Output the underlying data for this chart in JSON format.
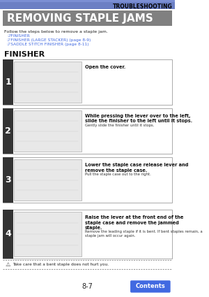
{
  "page_bg": "#ffffff",
  "header_bar_color": "#6b7fc4",
  "header_text": "TROUBLESHOOTING",
  "header_text_color": "#000000",
  "title_bg": "#808080",
  "title_text": "REMOVING STAPLE JAMS",
  "title_text_color": "#ffffff",
  "intro_text": "Follow the steps below to remove a staple jam.",
  "links": [
    "☞FINISHER",
    "☞FINISHER (LARGE STACKER) (page 8-9)",
    "☞SADDLE STITCH FINISHER (page 8-11)"
  ],
  "link_color": "#4169e1",
  "section_title": "FINISHER",
  "steps": [
    {
      "num": "1",
      "main_text": "Open the cover.",
      "sub_text": ""
    },
    {
      "num": "2",
      "main_text": "While pressing the lever over to the left,\nslide the finisher to the left until it stops.",
      "sub_text": "Gently slide the finisher until it stops."
    },
    {
      "num": "3",
      "main_text": "Lower the staple case release lever and\nremove the staple case.",
      "sub_text": "Pull the staple case out to the right."
    },
    {
      "num": "4",
      "main_text": "Raise the lever at the front end of the\nstaple case and remove the jammed\nstaple.",
      "sub_text": "Remove the leading staple if it is bent. If bent staples remain, a\nstaple jam will occur again."
    }
  ],
  "step_num_bg": "#333333",
  "step_num_color": "#ffffff",
  "step_box_bg": "#ffffff",
  "step_border_color": "#888888",
  "img_bg": "#e8e8e8",
  "warning_text": "Take care that a bent staple does not hurt you.",
  "page_num": "8-7",
  "contents_btn_text": "Contents",
  "contents_btn_bg": "#4169e1",
  "contents_btn_color": "#ffffff"
}
